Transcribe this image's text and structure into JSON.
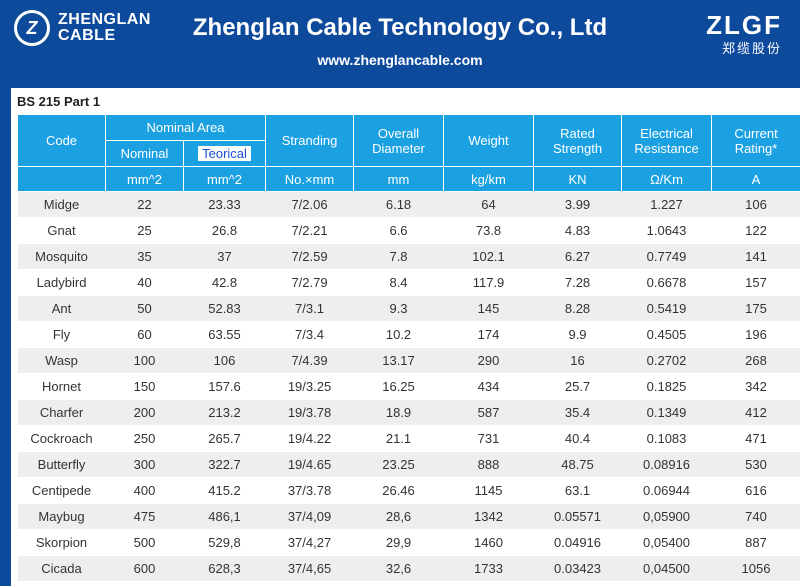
{
  "header": {
    "logo_mark": "Z",
    "logo_line1": "ZHENGLAN",
    "logo_line2": "CABLE",
    "title": "Zhenglan Cable Technology Co., Ltd",
    "website": "www.zhenglancable.com",
    "right_logo": "ZLGF",
    "right_logo_cn": "郑缆股份"
  },
  "table": {
    "title": "BS 215 Part 1",
    "headers": {
      "code": "Code",
      "nominal_area": "Nominal Area",
      "nominal": "Nominal",
      "teorical": "Teorical",
      "stranding": "Stranding",
      "overall_diameter": "Overall Diameter",
      "weight": "Weight",
      "rated_strength": "Rated Strength",
      "electrical_resistance": "Electrical Resistance",
      "current_rating": "Current Rating*"
    },
    "units": [
      "mm^2",
      "mm^2",
      "No.×mm",
      "mm",
      "kg/km",
      "KN",
      "Ω/Km",
      "A"
    ],
    "rows": [
      [
        "Midge",
        "22",
        "23.33",
        "7/2.06",
        "6.18",
        "64",
        "3.99",
        "1.227",
        "106"
      ],
      [
        "Gnat",
        "25",
        "26.8",
        "7/2.21",
        "6.6",
        "73.8",
        "4.83",
        "1.0643",
        "122"
      ],
      [
        "Mosquito",
        "35",
        "37",
        "7/2.59",
        "7.8",
        "102.1",
        "6.27",
        "0.7749",
        "141"
      ],
      [
        "Ladybird",
        "40",
        "42.8",
        "7/2.79",
        "8.4",
        "117.9",
        "7.28",
        "0.6678",
        "157"
      ],
      [
        "Ant",
        "50",
        "52.83",
        "7/3.1",
        "9.3",
        "145",
        "8.28",
        "0.5419",
        "175"
      ],
      [
        "Fly",
        "60",
        "63.55",
        "7/3.4",
        "10.2",
        "174",
        "9.9",
        "0.4505",
        "196"
      ],
      [
        "Wasp",
        "100",
        "106",
        "7/4.39",
        "13.17",
        "290",
        "16",
        "0.2702",
        "268"
      ],
      [
        "Hornet",
        "150",
        "157.6",
        "19/3.25",
        "16.25",
        "434",
        "25.7",
        "0.1825",
        "342"
      ],
      [
        "Charfer",
        "200",
        "213.2",
        "19/3.78",
        "18.9",
        "587",
        "35.4",
        "0.1349",
        "412"
      ],
      [
        "Cockroach",
        "250",
        "265.7",
        "19/4.22",
        "21.1",
        "731",
        "40.4",
        "0.1083",
        "471"
      ],
      [
        "Butterfly",
        "300",
        "322.7",
        "19/4.65",
        "23.25",
        "888",
        "48.75",
        "0.08916",
        "530"
      ],
      [
        "Centipede",
        "400",
        "415.2",
        "37/3.78",
        "26.46",
        "1145",
        "63.1",
        "0.06944",
        "616"
      ],
      [
        "Maybug",
        "475",
        "486,1",
        "37/4,09",
        "28,6",
        "1342",
        "0.05571",
        "0,05900",
        "740"
      ],
      [
        "Skorpion",
        "500",
        "529,8",
        "37/4,27",
        "29,9",
        "1460",
        "0.04916",
        "0,05400",
        "887"
      ],
      [
        "Cicada",
        "600",
        "628,3",
        "37/4,65",
        "32,6",
        "1733",
        "0.03423",
        "0,04500",
        "1056"
      ]
    ]
  }
}
